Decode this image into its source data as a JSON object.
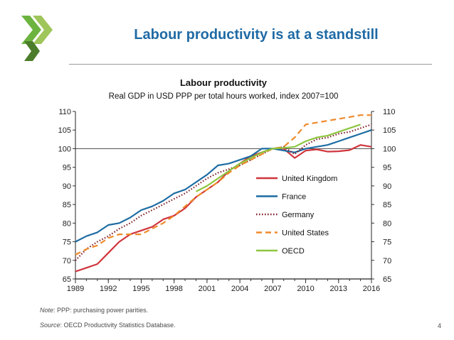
{
  "slide": {
    "title": "Labour productivity is at a standstill",
    "note_label": "Note",
    "note_text": ": PPP: purchasing power parities.",
    "source_label": "Source",
    "source_text": ": OECD Productivity Statistics Database.",
    "page_number": "4",
    "logo_colors": [
      "#6cb33f",
      "#9fc65a",
      "#4b7d2a"
    ]
  },
  "chart_data": {
    "type": "line",
    "title": "Labour productivity",
    "subtitle": "Real GDP in USD PPP per total hours worked, index 2007=100",
    "xlabel": "",
    "ylabel": "",
    "x": [
      1989,
      1990,
      1991,
      1992,
      1993,
      1994,
      1995,
      1996,
      1997,
      1998,
      1999,
      2000,
      2001,
      2002,
      2003,
      2004,
      2005,
      2006,
      2007,
      2008,
      2009,
      2010,
      2011,
      2012,
      2013,
      2014,
      2015,
      2016
    ],
    "x_ticks": [
      1989,
      1992,
      1995,
      1998,
      2001,
      2004,
      2007,
      2010,
      2013,
      2016
    ],
    "xlim": [
      1989,
      2016
    ],
    "ylim": [
      65,
      110
    ],
    "y_ticks": [
      65,
      70,
      75,
      80,
      85,
      90,
      95,
      100,
      105,
      110
    ],
    "reference_line": 100,
    "legend_position": "bottom-right",
    "series": [
      {
        "name": "United Kingdom",
        "color": "#d0343c",
        "dash": "solid",
        "values": [
          67,
          68,
          69,
          72,
          75,
          77,
          78,
          79,
          81,
          82,
          84,
          87,
          89,
          91,
          94,
          96,
          98,
          99,
          100,
          100,
          97.5,
          99.5,
          99.8,
          99.2,
          99.3,
          99.6,
          101,
          100.5
        ]
      },
      {
        "name": "France",
        "color": "#1d6ca3",
        "dash": "solid",
        "values": [
          75,
          76.5,
          77.5,
          79.5,
          80,
          81.5,
          83.5,
          84.5,
          86,
          88,
          89,
          91,
          93,
          95.5,
          96,
          97,
          98,
          100,
          100,
          99.5,
          99,
          100,
          100.5,
          101,
          102,
          103,
          104,
          105
        ]
      },
      {
        "name": "Germany",
        "color": "#7b1a22",
        "dash": "dotted",
        "values": [
          70,
          73,
          75,
          76.5,
          78.5,
          80,
          82,
          83.5,
          85,
          86.5,
          88,
          90,
          92,
          93.5,
          94.5,
          95.5,
          97,
          98.5,
          100,
          100.5,
          98.5,
          101,
          102.5,
          103,
          104,
          104.5,
          105.5,
          106.5
        ]
      },
      {
        "name": "United States",
        "color": "#ef8a2a",
        "dash": "dashed",
        "values": [
          71.5,
          73,
          74,
          76,
          77,
          77,
          77,
          78.5,
          80,
          82,
          84.5,
          87,
          89,
          91,
          93.5,
          95.5,
          97,
          98.5,
          100,
          100.5,
          103,
          106.5,
          107,
          107.5,
          108,
          108.5,
          109,
          109
        ]
      },
      {
        "name": "OECD",
        "color": "#8dc63f",
        "dash": "solid",
        "values": [
          null,
          null,
          null,
          null,
          null,
          null,
          null,
          null,
          null,
          null,
          null,
          88.5,
          90,
          92,
          94,
          96,
          97.5,
          99,
          100,
          100.2,
          100.5,
          102,
          103,
          103.5,
          104.5,
          105.5,
          106.5,
          null
        ]
      }
    ]
  }
}
